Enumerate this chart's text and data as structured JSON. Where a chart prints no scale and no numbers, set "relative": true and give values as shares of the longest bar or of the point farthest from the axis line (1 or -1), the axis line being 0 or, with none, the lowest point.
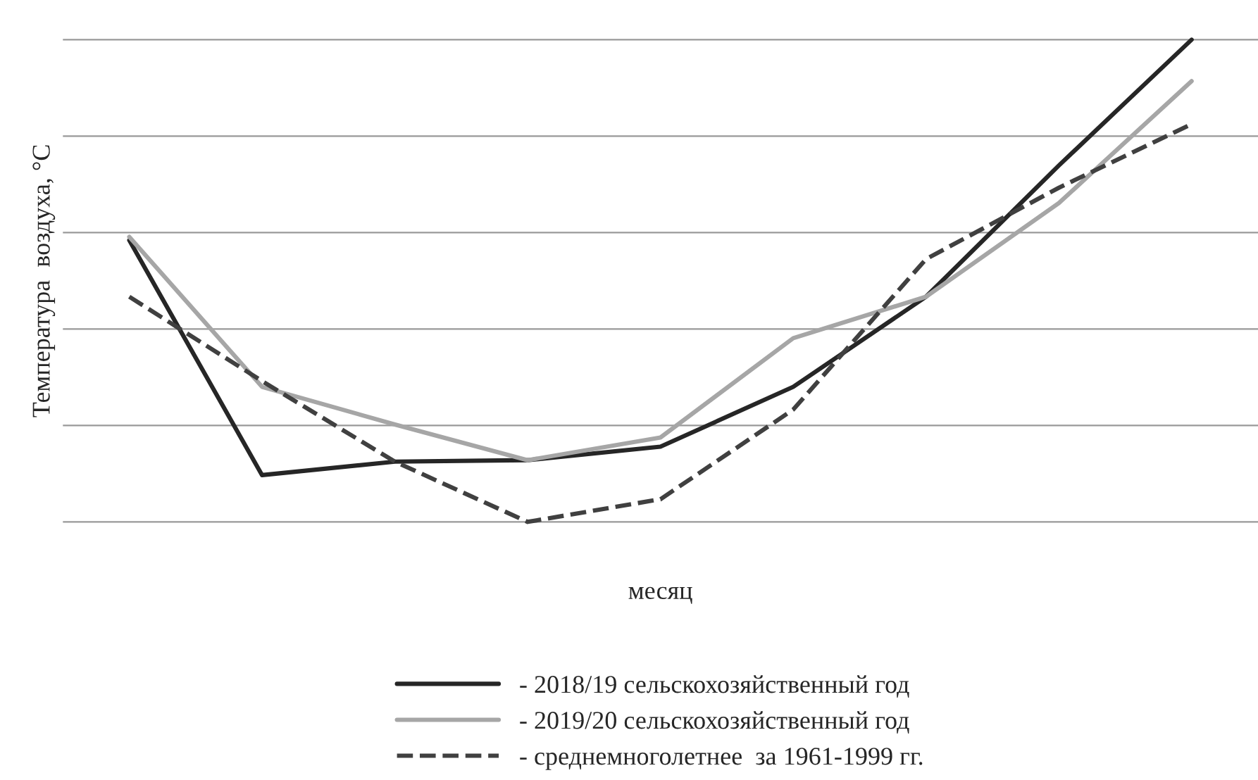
{
  "chart_data": {
    "type": "line",
    "relative": true,
    "xlabel": "месяц",
    "ylabel": "Температура  воздуха, °С",
    "categories": [
      null,
      null,
      null,
      null,
      null,
      null,
      null,
      null,
      null
    ],
    "series": [
      {
        "name": "- 2018/19 сельскохозяйственный год",
        "color": "#262626",
        "line_style": "solid",
        "values": [
          0.584,
          0.097,
          0.125,
          0.128,
          0.156,
          0.28,
          0.467,
          0.739,
          1
        ]
      },
      {
        "name": "- 2019/20 сельскохозяйственный год",
        "color": "#a6a6a6",
        "line_style": "solid",
        "values": [
          0.591,
          0.28,
          0.202,
          0.128,
          0.175,
          0.381,
          0.467,
          0.661,
          0.914
        ]
      },
      {
        "name": "- среднемноголетнее  за 1961-1999 гг.",
        "color": "#404040",
        "line_style": "dashed",
        "values": [
          0.467,
          0.292,
          0.125,
          0,
          0.047,
          0.233,
          0.545,
          0.693,
          0.825
        ]
      }
    ],
    "grid": "y",
    "legend": "bottom",
    "tick_labels": false
  }
}
